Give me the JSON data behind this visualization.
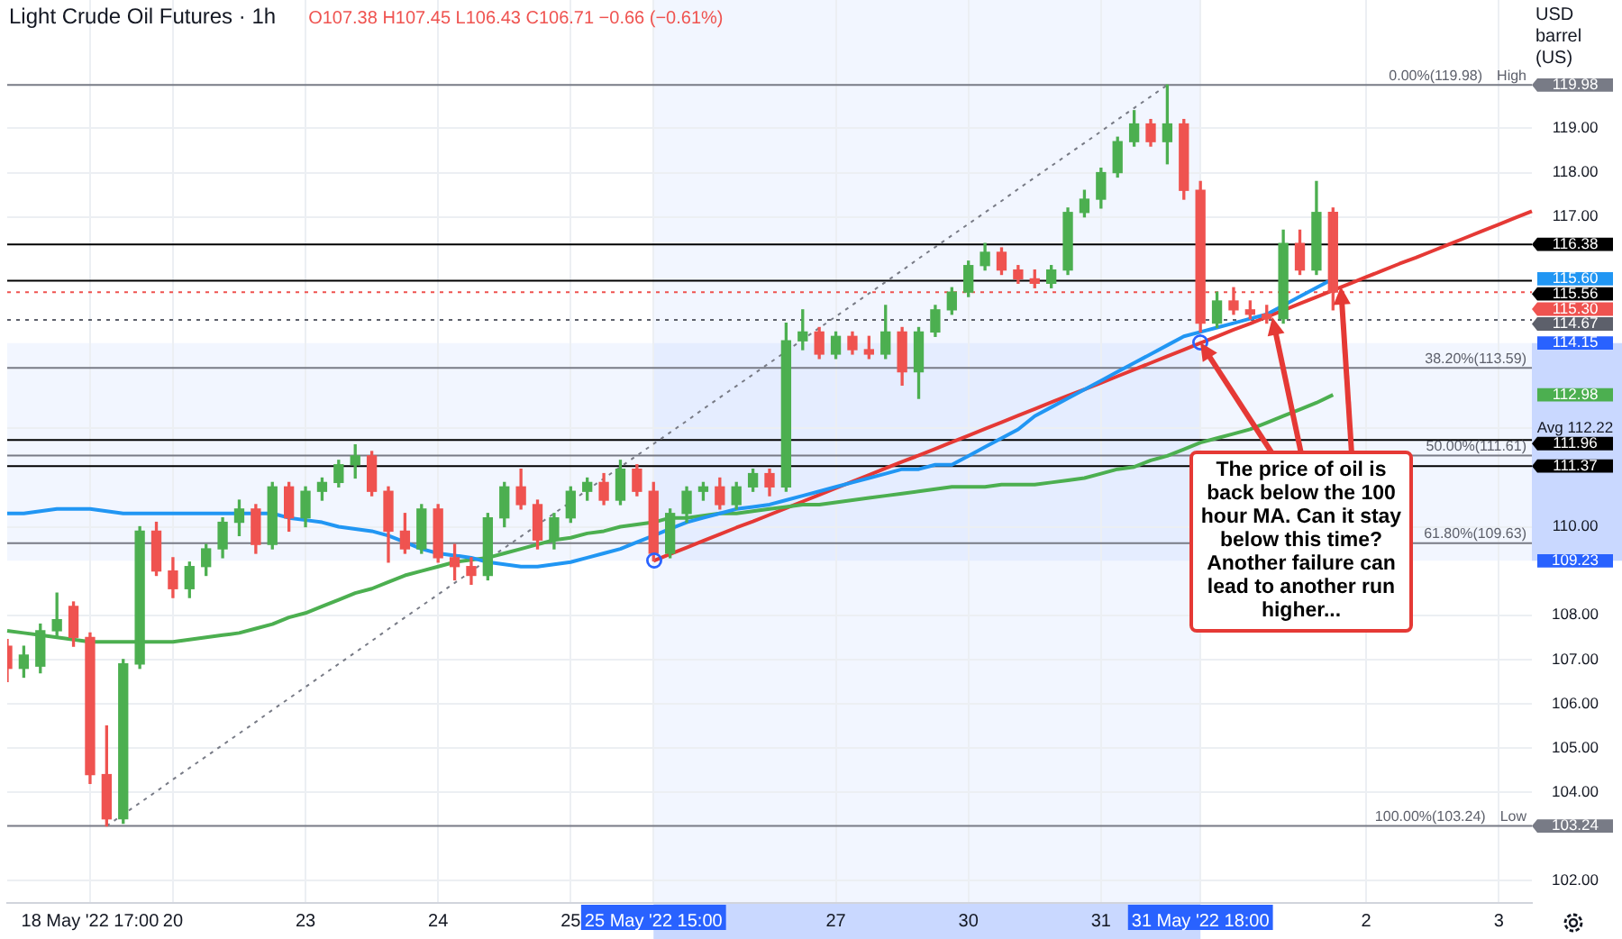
{
  "chart_data": {
    "type": "candlestick",
    "title": "Light Crude Oil Futures · 1h",
    "subtitle": "O107.38 H107.45 L106.43 C106.71 −0.66 (−0.61%)",
    "ylabel": "USD barrel (US)",
    "categories": [
      null,
      null,
      null,
      null,
      null,
      "18 May '22 17:00",
      null,
      null,
      null,
      null,
      "20",
      null,
      null,
      null,
      null,
      null,
      null,
      null,
      "23",
      null,
      null,
      null,
      null,
      null,
      null,
      null,
      "24",
      null,
      null,
      null,
      null,
      null,
      null,
      null,
      "25",
      null,
      null,
      null,
      null,
      "25 May '22 15:00",
      null,
      null,
      null,
      null,
      null,
      null,
      null,
      null,
      null,
      null,
      "27",
      null,
      null,
      null,
      null,
      null,
      null,
      null,
      "30",
      null,
      null,
      null,
      null,
      null,
      null,
      null,
      "31",
      null,
      null,
      null,
      null,
      null,
      "31 May '22 18:00",
      null,
      null,
      null,
      null,
      null,
      null,
      null,
      null,
      null,
      "2",
      null,
      null,
      null,
      null,
      null,
      null,
      null,
      "3",
      null,
      null
    ],
    "ohlc": [
      [
        107.3,
        107.45,
        106.5,
        106.8
      ],
      [
        106.8,
        107.3,
        106.6,
        107.1
      ],
      [
        106.85,
        107.8,
        106.7,
        107.65
      ],
      [
        107.65,
        108.5,
        107.5,
        107.9
      ],
      [
        108.2,
        108.3,
        107.3,
        107.5
      ],
      [
        107.5,
        107.6,
        104.2,
        104.4
      ],
      [
        104.4,
        105.5,
        103.24,
        103.4
      ],
      [
        103.4,
        107.0,
        103.3,
        106.9
      ],
      [
        106.9,
        110.0,
        106.8,
        109.9
      ],
      [
        109.9,
        110.1,
        108.9,
        109.0
      ],
      [
        109.0,
        109.3,
        108.4,
        108.6
      ],
      [
        108.6,
        109.2,
        108.4,
        109.1
      ],
      [
        109.1,
        109.6,
        108.9,
        109.5
      ],
      [
        109.5,
        110.2,
        109.3,
        110.1
      ],
      [
        110.1,
        110.6,
        109.8,
        110.4
      ],
      [
        110.4,
        110.5,
        109.4,
        109.6
      ],
      [
        109.6,
        111.0,
        109.5,
        110.9
      ],
      [
        110.9,
        111.0,
        109.9,
        110.2
      ],
      [
        110.2,
        110.9,
        110.0,
        110.8
      ],
      [
        110.8,
        111.1,
        110.6,
        111.0
      ],
      [
        111.0,
        111.5,
        110.9,
        111.4
      ],
      [
        111.4,
        111.85,
        111.1,
        111.6
      ],
      [
        111.6,
        111.7,
        110.7,
        110.8
      ],
      [
        110.8,
        110.9,
        109.2,
        109.9
      ],
      [
        109.9,
        110.3,
        109.4,
        109.5
      ],
      [
        109.5,
        110.5,
        109.4,
        110.4
      ],
      [
        110.4,
        110.5,
        109.2,
        109.3
      ],
      [
        109.3,
        109.6,
        108.8,
        109.1
      ],
      [
        109.1,
        109.3,
        108.7,
        108.9
      ],
      [
        108.9,
        110.3,
        108.8,
        110.2
      ],
      [
        110.2,
        111.0,
        110.0,
        110.9
      ],
      [
        110.9,
        111.3,
        110.4,
        110.5
      ],
      [
        110.5,
        110.6,
        109.5,
        109.7
      ],
      [
        109.7,
        110.3,
        109.5,
        110.2
      ],
      [
        110.2,
        110.9,
        110.1,
        110.8
      ],
      [
        110.8,
        111.1,
        110.6,
        111.0
      ],
      [
        111.0,
        111.2,
        110.5,
        110.6
      ],
      [
        110.6,
        111.5,
        110.5,
        111.3
      ],
      [
        111.3,
        111.4,
        110.7,
        110.8
      ],
      [
        110.8,
        111.0,
        109.23,
        109.4
      ],
      [
        109.4,
        110.4,
        109.3,
        110.3
      ],
      [
        110.3,
        110.9,
        110.1,
        110.8
      ],
      [
        110.8,
        111.0,
        110.6,
        110.9
      ],
      [
        110.9,
        111.1,
        110.4,
        110.5
      ],
      [
        110.5,
        111.0,
        110.4,
        110.9
      ],
      [
        110.9,
        111.3,
        110.8,
        111.2
      ],
      [
        111.2,
        111.3,
        110.7,
        110.9
      ],
      [
        110.9,
        114.6,
        110.8,
        114.2
      ],
      [
        114.2,
        114.9,
        114.0,
        114.4
      ],
      [
        114.4,
        114.5,
        113.8,
        113.9
      ],
      [
        113.9,
        114.4,
        113.8,
        114.3
      ],
      [
        114.3,
        114.4,
        113.9,
        114.0
      ],
      [
        114.0,
        114.3,
        113.8,
        113.9
      ],
      [
        113.9,
        115.0,
        113.8,
        114.4
      ],
      [
        114.4,
        114.5,
        113.2,
        113.5
      ],
      [
        113.5,
        114.5,
        112.9,
        114.4
      ],
      [
        114.4,
        115.0,
        114.3,
        114.9
      ],
      [
        114.9,
        115.4,
        114.8,
        115.3
      ],
      [
        115.3,
        116.0,
        115.2,
        115.9
      ],
      [
        115.9,
        116.4,
        115.8,
        116.2
      ],
      [
        116.2,
        116.3,
        115.7,
        115.8
      ],
      [
        115.8,
        115.9,
        115.5,
        115.6
      ],
      [
        115.6,
        115.8,
        115.4,
        115.5
      ],
      [
        115.5,
        115.9,
        115.4,
        115.8
      ],
      [
        115.8,
        117.2,
        115.7,
        117.1
      ],
      [
        117.1,
        117.6,
        117.0,
        117.4
      ],
      [
        117.4,
        118.1,
        117.2,
        118.0
      ],
      [
        118.0,
        118.8,
        117.9,
        118.7
      ],
      [
        118.7,
        119.4,
        118.6,
        119.1
      ],
      [
        119.1,
        119.2,
        118.6,
        118.7
      ],
      [
        118.7,
        119.98,
        118.2,
        119.1
      ],
      [
        119.1,
        119.2,
        117.4,
        117.6
      ],
      [
        117.6,
        117.8,
        114.4,
        114.6
      ],
      [
        114.6,
        115.3,
        114.5,
        115.1
      ],
      [
        115.1,
        115.4,
        114.8,
        114.9
      ],
      [
        114.9,
        115.1,
        114.7,
        114.8
      ],
      [
        114.8,
        115.0,
        114.6,
        114.7
      ],
      [
        114.7,
        116.7,
        114.6,
        116.4
      ],
      [
        116.4,
        116.7,
        115.7,
        115.8
      ],
      [
        115.8,
        117.8,
        115.7,
        117.1
      ],
      [
        117.1,
        117.2,
        114.9,
        115.3
      ],
      null,
      null,
      null,
      null,
      null,
      null,
      null,
      null,
      null,
      null,
      null,
      null
    ],
    "series": [
      {
        "type": "line",
        "color": "#2196f3",
        "values": [
          110.3,
          110.3,
          110.35,
          110.4,
          110.4,
          110.4,
          110.35,
          110.3,
          110.3,
          110.3,
          110.3,
          110.3,
          110.3,
          110.3,
          110.3,
          110.3,
          110.3,
          110.2,
          110.15,
          110.1,
          110.0,
          109.95,
          109.9,
          109.8,
          109.65,
          109.5,
          109.4,
          109.35,
          109.3,
          109.2,
          109.15,
          109.1,
          109.1,
          109.15,
          109.2,
          109.3,
          109.4,
          109.5,
          109.65,
          109.8,
          109.95,
          110.1,
          110.2,
          110.3,
          110.4,
          110.45,
          110.5,
          110.6,
          110.7,
          110.8,
          110.9,
          111.0,
          111.1,
          111.2,
          111.3,
          111.3,
          111.4,
          111.4,
          111.6,
          111.8,
          112.0,
          112.2,
          112.5,
          112.7,
          112.9,
          113.1,
          113.3,
          113.5,
          113.7,
          113.9,
          114.1,
          114.3,
          114.4,
          114.5,
          114.6,
          114.7,
          114.8,
          115.0,
          115.2,
          115.4,
          115.6,
          null,
          null,
          null,
          null,
          null,
          null,
          null,
          null,
          null,
          null,
          null,
          null
        ]
      },
      {
        "type": "line",
        "color": "#4caf50",
        "values": [
          107.65,
          107.6,
          107.55,
          107.5,
          107.45,
          107.4,
          107.4,
          107.4,
          107.4,
          107.4,
          107.4,
          107.45,
          107.5,
          107.55,
          107.6,
          107.7,
          107.8,
          107.95,
          108.05,
          108.2,
          108.35,
          108.5,
          108.6,
          108.75,
          108.9,
          109.0,
          109.1,
          109.2,
          109.25,
          109.3,
          109.4,
          109.5,
          109.6,
          109.7,
          109.75,
          109.85,
          109.9,
          110.0,
          110.05,
          110.1,
          110.2,
          110.2,
          110.25,
          110.3,
          110.3,
          110.35,
          110.4,
          110.45,
          110.5,
          110.5,
          110.55,
          110.6,
          110.65,
          110.7,
          110.75,
          110.8,
          110.85,
          110.9,
          110.9,
          110.9,
          110.95,
          110.95,
          110.95,
          111.0,
          111.05,
          111.1,
          111.2,
          111.3,
          111.35,
          111.5,
          111.6,
          111.75,
          111.9,
          112.0,
          112.1,
          112.2,
          112.35,
          112.5,
          112.65,
          112.8,
          112.98,
          null,
          null,
          null,
          null,
          null,
          null,
          null,
          null,
          null,
          null,
          null,
          null
        ]
      },
      {
        "type": "line",
        "color": "#787b86",
        "line_style": "dotted",
        "values": [
          null,
          null,
          null,
          null,
          null,
          null,
          103.24,
          103.5,
          103.76,
          104.02,
          104.29,
          104.55,
          104.81,
          105.07,
          105.33,
          105.59,
          105.86,
          106.12,
          106.38,
          106.64,
          106.9,
          107.16,
          107.42,
          107.69,
          107.95,
          108.21,
          108.47,
          108.73,
          108.99,
          109.26,
          109.52,
          109.78,
          110.04,
          110.3,
          110.56,
          110.83,
          111.09,
          111.35,
          111.61,
          111.87,
          112.13,
          112.39,
          112.66,
          112.92,
          113.18,
          113.44,
          113.7,
          113.96,
          114.23,
          114.49,
          114.75,
          115.01,
          115.27,
          115.53,
          115.79,
          116.06,
          116.32,
          116.58,
          116.84,
          117.1,
          117.36,
          117.63,
          117.89,
          118.15,
          118.41,
          118.67,
          118.93,
          119.2,
          119.46,
          119.72,
          119.98,
          null,
          null,
          null,
          null,
          null,
          null,
          null,
          null,
          null,
          null,
          null,
          null,
          null,
          null,
          null,
          null,
          null,
          null,
          null,
          null,
          null,
          null
        ]
      },
      {
        "type": "line",
        "color": "#e53935",
        "values": [
          null,
          null,
          null,
          null,
          null,
          null,
          null,
          null,
          null,
          null,
          null,
          null,
          null,
          null,
          null,
          null,
          null,
          null,
          null,
          null,
          null,
          null,
          null,
          null,
          null,
          null,
          null,
          null,
          null,
          null,
          null,
          null,
          null,
          null,
          null,
          null,
          null,
          null,
          null,
          109.23,
          109.38,
          109.53,
          109.68,
          109.83,
          109.98,
          110.12,
          110.27,
          110.42,
          110.57,
          110.72,
          110.87,
          111.02,
          111.17,
          111.32,
          111.47,
          111.61,
          111.76,
          111.91,
          112.06,
          112.21,
          112.36,
          112.51,
          112.66,
          112.81,
          112.96,
          113.1,
          113.25,
          113.4,
          113.55,
          113.7,
          113.85,
          114.0,
          114.15,
          114.3,
          114.45,
          114.59,
          114.74,
          114.89,
          115.04,
          115.19,
          115.34,
          115.49,
          115.64,
          115.79,
          115.94,
          116.08,
          116.23,
          116.38,
          116.53,
          116.68,
          116.83,
          116.98,
          117.13
        ]
      }
    ],
    "ylim": [
      101.5,
      121.9
    ],
    "yticks": [
      {
        "value": 102,
        "label": "102.00"
      },
      {
        "value": 104,
        "label": "104.00"
      },
      {
        "value": 105,
        "label": "105.00"
      },
      {
        "value": 106,
        "label": "106.00"
      },
      {
        "value": 107,
        "label": "107.00"
      },
      {
        "value": 108,
        "label": "108.00"
      },
      {
        "value": 109.23,
        "label": "109.23"
      },
      {
        "value": 110,
        "label": "110.00"
      },
      {
        "value": 112.22,
        "label": "Avg 112.22"
      },
      {
        "value": 112.98,
        "label": "112.98"
      },
      {
        "value": 114.15,
        "label": "114.15"
      },
      {
        "value": 115.6,
        "label": "115.60"
      },
      {
        "value": 117,
        "label": "117.00"
      },
      {
        "value": 118,
        "label": "118.00"
      },
      {
        "value": 119,
        "label": "119.00"
      }
    ],
    "ref_lines": [
      {
        "axis": "y",
        "value": 119.98,
        "label": "119.98",
        "color": "#787b86"
      },
      {
        "axis": "y",
        "value": 116.38,
        "label": "116.38",
        "color": "#000000"
      },
      {
        "axis": "y",
        "value": 115.56,
        "label": "115.56",
        "color": "#000000"
      },
      {
        "axis": "y",
        "value": 115.3,
        "label": "115.30",
        "color": "#ef5350",
        "line_style": "dotted"
      },
      {
        "axis": "y",
        "value": 114.67,
        "label": "114.67",
        "color": "#5d606b",
        "line_style": "dotted"
      },
      {
        "axis": "y",
        "value": 113.59,
        "color": "#787b86"
      },
      {
        "axis": "y",
        "value": 111.96,
        "label": "111.96",
        "color": "#000000"
      },
      {
        "axis": "y",
        "value": 111.61,
        "color": "#787b86"
      },
      {
        "axis": "y",
        "value": 111.37,
        "label": "111.37",
        "color": "#000000"
      },
      {
        "axis": "y",
        "value": 109.63,
        "color": "#787b86"
      },
      {
        "axis": "y",
        "value": 103.24,
        "label": "103.24",
        "color": "#787b86"
      }
    ],
    "bands": [
      {
        "axis": "y",
        "from": 109.23,
        "to": 114.15,
        "color": "#2962ff"
      },
      {
        "axis": "x",
        "from": "25 May '22 15:00",
        "to": "31 May '22 18:00",
        "color": "#2962ff"
      }
    ],
    "annotations": [
      {
        "text": "The price of oil is back below the 100 hour MA. Can it stay below this time?  Another failure can lead to another run higher...",
        "x": "31 May '22 18:00",
        "y": 114.15
      },
      {
        "text": "0.00%(119.98)",
        "y": 119.98
      },
      {
        "text": "38.20%(113.59)",
        "y": 113.59
      },
      {
        "text": "50.00%(111.61)",
        "y": 111.61
      },
      {
        "text": "61.80%(109.63)",
        "y": 109.63
      },
      {
        "text": "100.00%(103.24)",
        "y": 103.24
      },
      {
        "text": "High",
        "y": 119.98
      },
      {
        "text": "Low",
        "y": 103.24
      }
    ],
    "grid": true
  }
}
